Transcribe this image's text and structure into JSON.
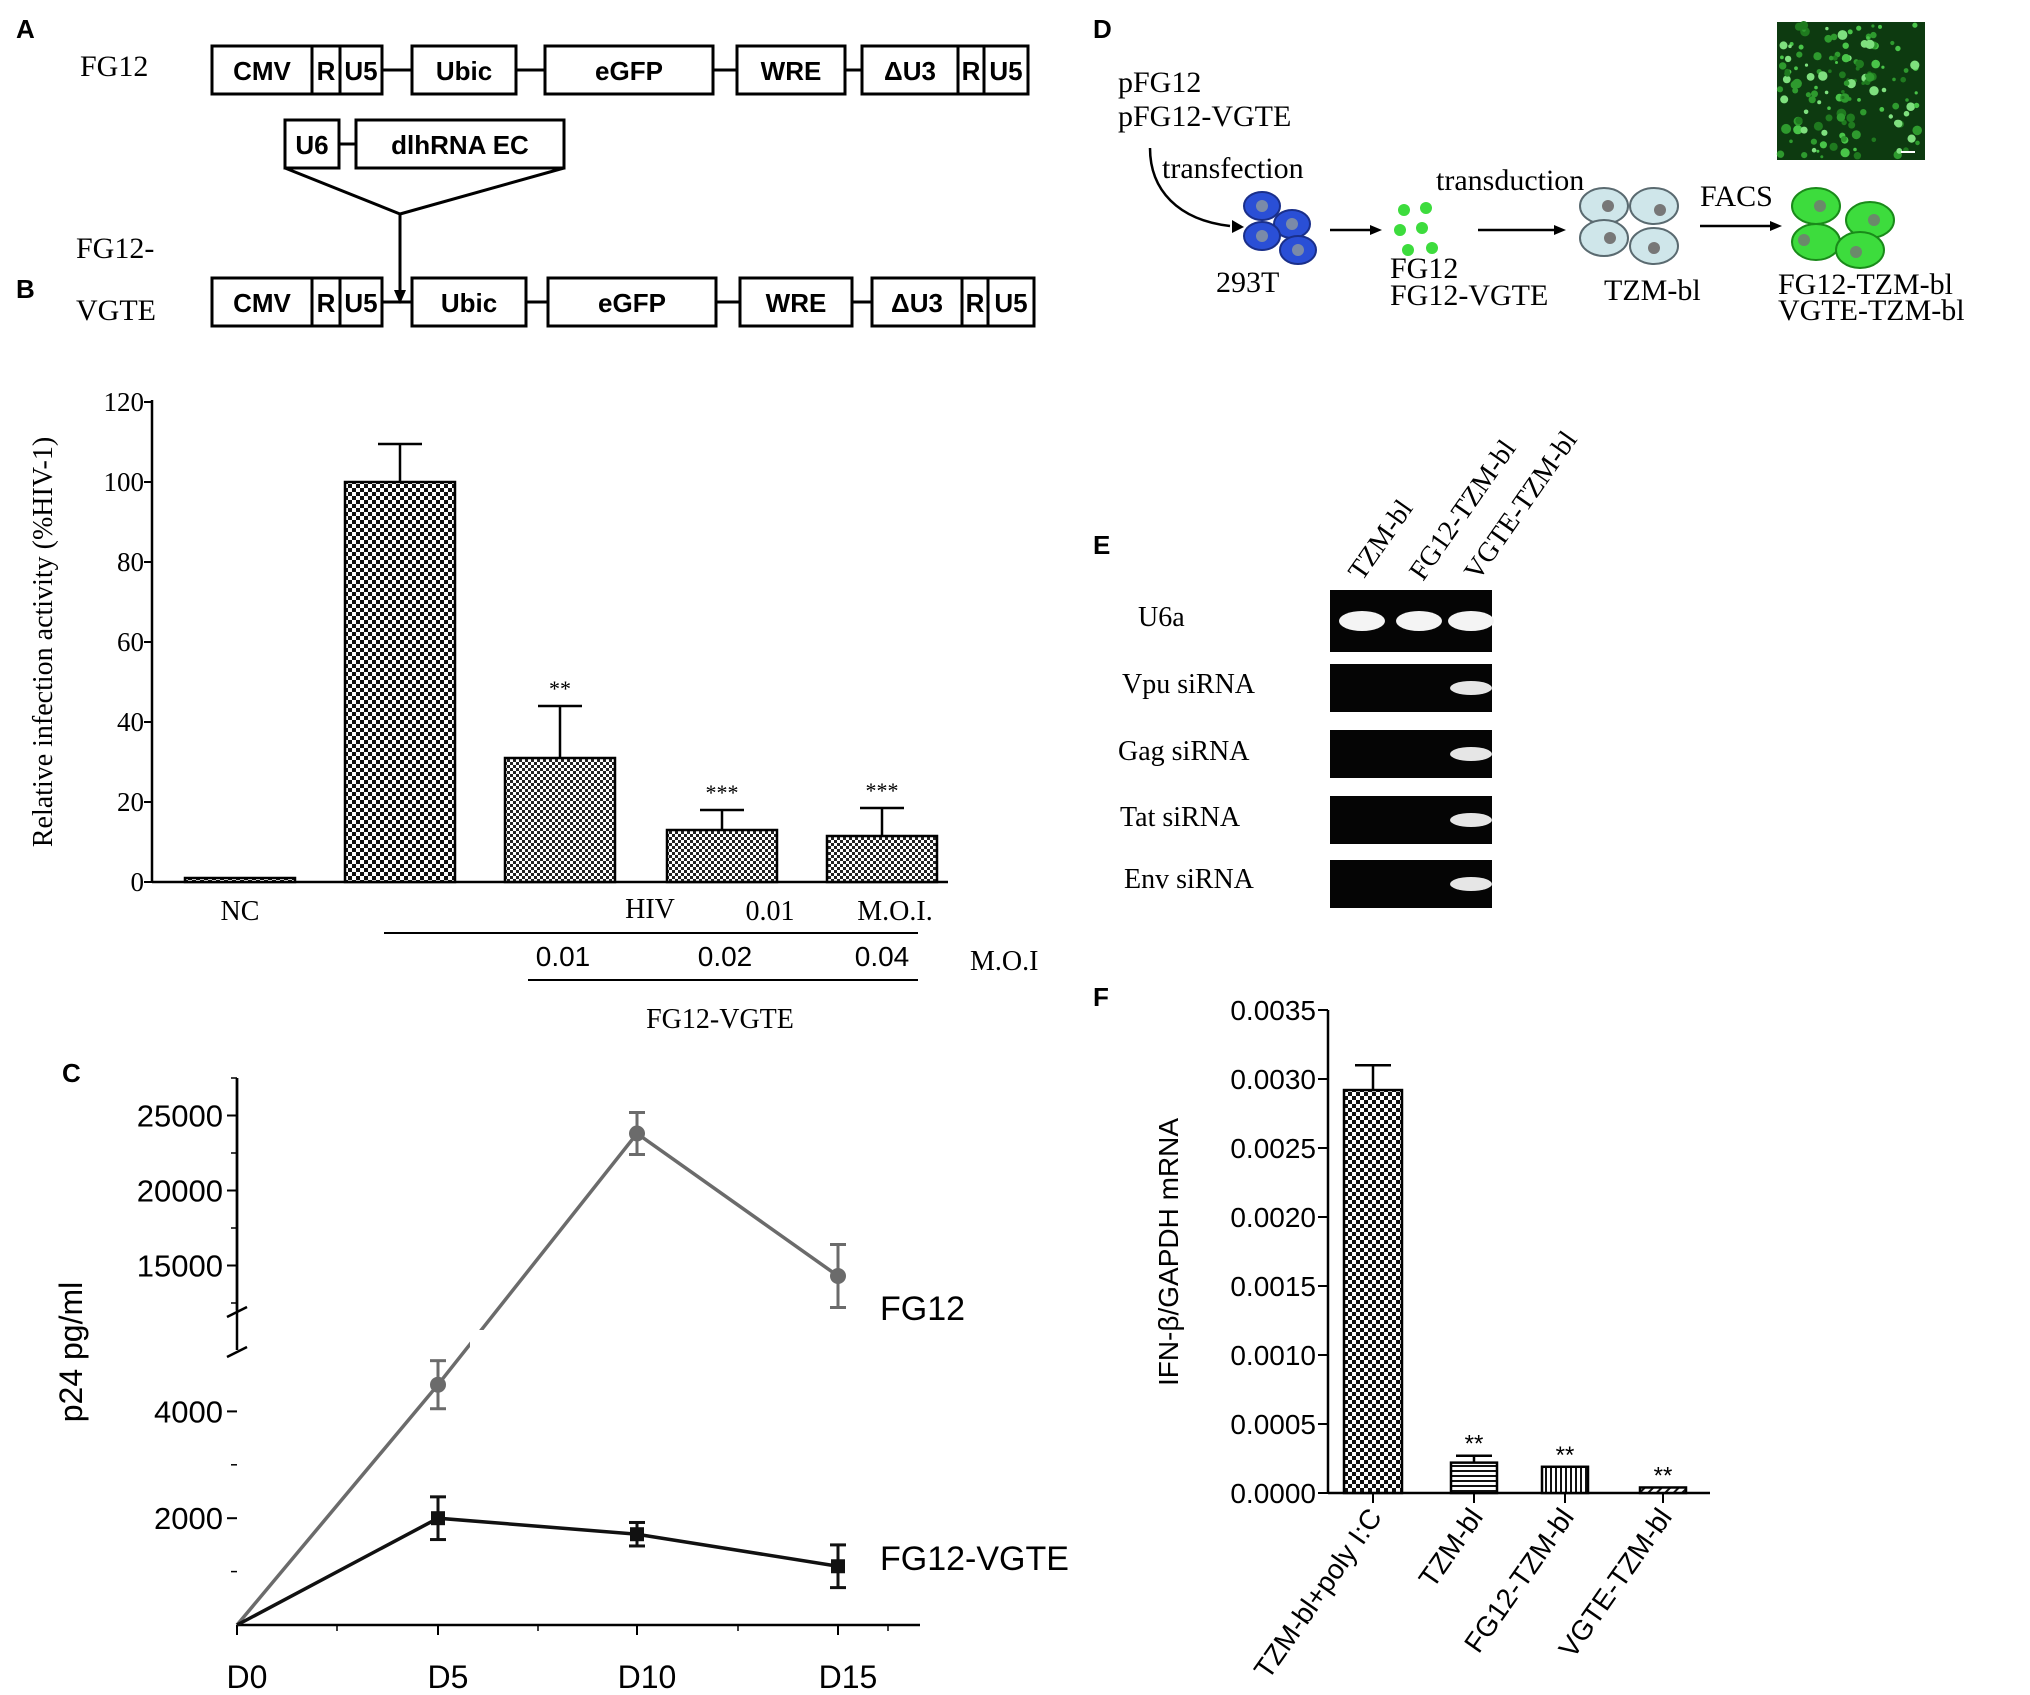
{
  "panel_labels": {
    "a": "A",
    "b": "B",
    "c": "C",
    "d": "D",
    "e": "E",
    "f": "F"
  },
  "panel_a": {
    "row1_label": "FG12",
    "row2_label_line1": "FG12-",
    "row2_label_line2": "VGTE",
    "row1_boxes": {
      "cmv": "CMV",
      "r": "R",
      "u5": "U5",
      "ubic": "Ubic",
      "egfp": "eGFP",
      "wre": "WRE",
      "du3": "ΔU3",
      "r2": "R",
      "u52": "U5"
    },
    "insert_boxes": {
      "u6": "U6",
      "dlhrna": "dlhRNA EC"
    },
    "row2_boxes": {
      "cmv": "CMV",
      "r": "R",
      "u5": "U5",
      "ubic": "Ubic",
      "egfp": "eGFP",
      "wre": "WRE",
      "du3": "ΔU3",
      "r2": "R",
      "u52": "U5"
    }
  },
  "panel_b": {
    "chart_data": {
      "type": "bar",
      "ylabel": "Relative infection activity (%HIV-1)",
      "ylim": [
        0,
        120
      ],
      "yticks": [
        "0",
        "20",
        "40",
        "60",
        "80",
        "100",
        "120"
      ],
      "categories": [
        "NC",
        "HIV 0.01 M.O.I.",
        "FG12-VGTE 0.01",
        "FG12-VGTE 0.02",
        "FG12-VGTE 0.04"
      ],
      "values": [
        1,
        100,
        31,
        13,
        11.5
      ],
      "errors": [
        0,
        9.5,
        13,
        5,
        7
      ],
      "significance": [
        "",
        "",
        "**",
        "***",
        "***"
      ]
    },
    "nc_label": "NC",
    "hiv_label": "HIV",
    "hiv_moi_value": "0.01",
    "hiv_moi_unit": "M.O.I.",
    "vgte_mois": [
      "0.01",
      "0.02",
      "0.04"
    ],
    "moi_label": "M.O.I",
    "group_label": "FG12-VGTE"
  },
  "panel_c": {
    "chart_data": {
      "type": "line",
      "ylabel": "p24 pg/ml",
      "x": [
        "D0",
        "D5",
        "D10",
        "D15"
      ],
      "yticks": [
        "2000",
        "4000",
        "15000",
        "20000",
        "25000"
      ],
      "y_axis_break": true,
      "series": [
        {
          "name": "FG12",
          "values": [
            0,
            4500,
            23800,
            14300
          ],
          "errors": [
            0,
            450,
            1400,
            2100
          ],
          "color": "#6b6b6b"
        },
        {
          "name": "FG12-VGTE",
          "values": [
            0,
            2000,
            1700,
            1100
          ],
          "errors": [
            0,
            400,
            220,
            400
          ],
          "color": "#111111"
        }
      ]
    }
  },
  "panel_d": {
    "plasmid1": "pFG12",
    "plasmid2": "pFG12-VGTE",
    "transfection": "transfection",
    "cell_293t": "293T",
    "transduction": "transduction",
    "virus1": "FG12",
    "virus2": "FG12-VGTE",
    "tzm": "TZM-bl",
    "facs": "FACS",
    "out1": "FG12-TZM-bl",
    "out2": "VGTE-TZM-bl",
    "colors": {
      "blue_cell": "#2a4fd6",
      "green": "#3ddc3d",
      "pale_cell": "#cfe6ea"
    }
  },
  "panel_e": {
    "lanes": [
      "TZM-bl",
      "FG12-TZM-bl",
      "VGTE-TZM-bl"
    ],
    "rows": [
      "U6a",
      "Vpu siRNA",
      "Gag siRNA",
      "Tat siRNA",
      "Env siRNA"
    ],
    "band_presence": [
      [
        1,
        1,
        1
      ],
      [
        0,
        0,
        1
      ],
      [
        0,
        0,
        1
      ],
      [
        0,
        0,
        1
      ],
      [
        0,
        0,
        1
      ]
    ]
  },
  "panel_f": {
    "chart_data": {
      "type": "bar",
      "ylabel": "IFN-β/GAPDH mRNA",
      "ylim": [
        0,
        0.0035
      ],
      "yticks": [
        "0.0000",
        "0.0005",
        "0.0010",
        "0.0015",
        "0.0020",
        "0.0025",
        "0.0030",
        "0.0035"
      ],
      "categories": [
        "TZM-bl+poly I:C",
        "TZM-bl",
        "FG12-TZM-bl",
        "VGTE-TZM-bl"
      ],
      "values": [
        0.00292,
        0.00022,
        0.00019,
        4e-05
      ],
      "errors": [
        0.00018,
        5e-05,
        0,
        0
      ],
      "significance": [
        "",
        "**",
        "**",
        "**"
      ]
    }
  }
}
